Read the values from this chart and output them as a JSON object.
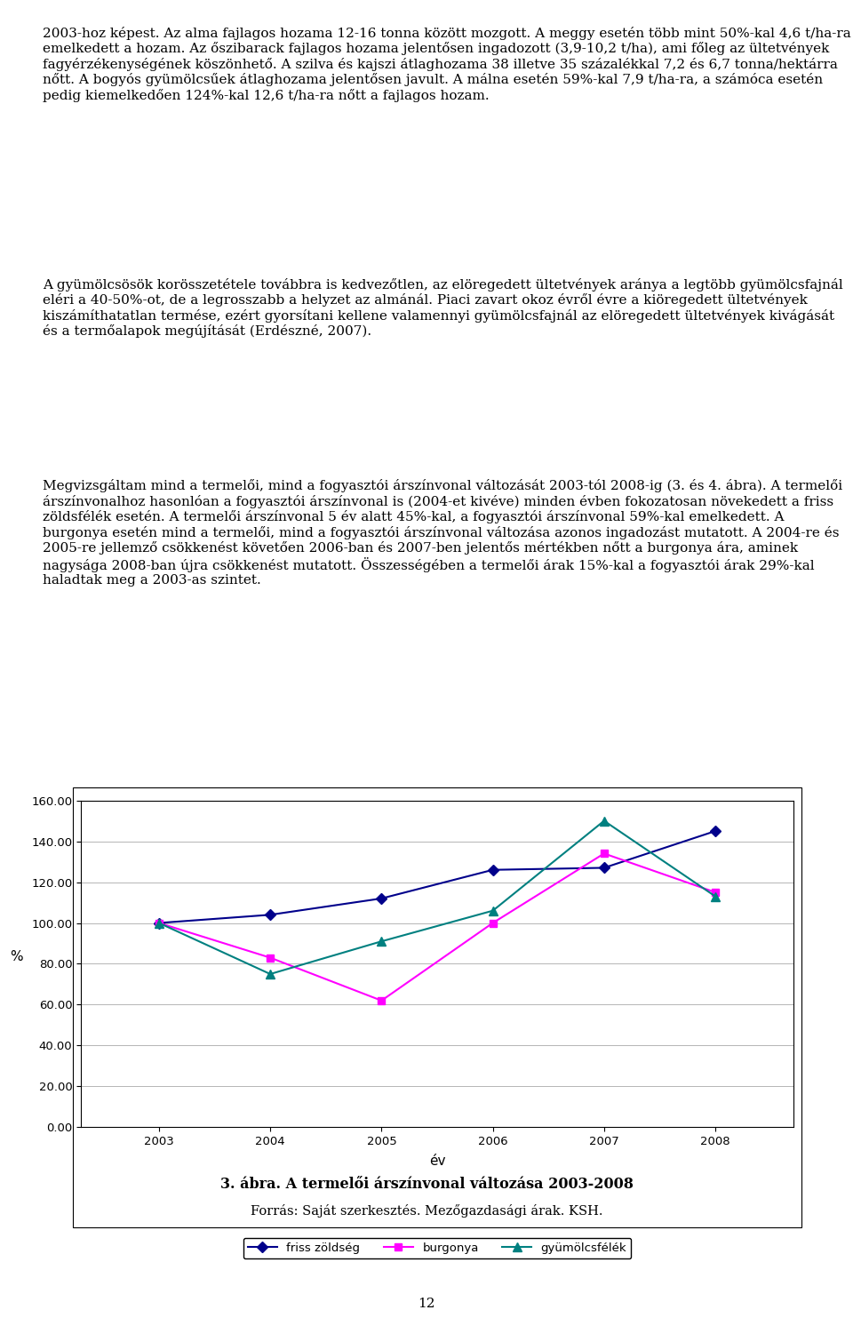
{
  "years": [
    2003,
    2004,
    2005,
    2006,
    2007,
    2008
  ],
  "friss_zoldseg": [
    100.0,
    104.0,
    112.0,
    126.0,
    127.0,
    145.0
  ],
  "burgonya": [
    100.0,
    83.0,
    62.0,
    100.0,
    134.0,
    115.0
  ],
  "gyumolcsfele": [
    100.0,
    75.0,
    91.0,
    106.0,
    150.0,
    113.0
  ],
  "friss_zoldseg_color": "#00008B",
  "burgonya_color": "#FF00FF",
  "gyumolcsfele_color": "#008080",
  "ylabel": "%",
  "xlabel": "év",
  "ylim_min": 0.0,
  "ylim_max": 160.0,
  "yticks": [
    0.0,
    20.0,
    40.0,
    60.0,
    80.0,
    100.0,
    120.0,
    140.0,
    160.0
  ],
  "legend_labels": [
    "friss zöldség",
    "burgonya",
    "gyümölcsfélék"
  ],
  "caption_bold": "3. ábra. A termelői árszínvonal változása 2003-2008",
  "caption_normal": "Forrás: Saját szerkesztés. Mezőgazdasági árak. KSH.",
  "page_number": "12",
  "para1": "2003-hoz képest. Az alma fajlagos hozama 12-16 tonna között mozgott. A meggy esetén több mint 50%-kal 4,6 t/ha-ra emelkedett a hozam. Az őszibarack fajlagos hozama jelentősen ingadozott (3,9-10,2 t/ha), ami főleg az ültetvények fagyérzékenységének köszönhető. A szilva és kajszi átlaghozama 38 illetve 35 százalékkal 7,2 és 6,7 tonna/hektárra nőtt. A bogyós gyümölcsűek átlaghozama jelentősen javult. A málna esetén 59%-kal 7,9 t/ha-ra, a számóca esetén pedig kiemelkedően 124%-kal 12,6 t/ha-ra nőtt a fajlagos hozam.",
  "para2": "A gyümölcsösök korösszetétele továbbra is kedvezőtlen, az elöregedett ültetvények aránya a legtöbb gyümölcsfajnál eléri a 40-50%-ot, de a legrosszabb a helyzet az almánál. Piaci zavart okoz évről évre a kiöregedett ültetvények kiszámíthatatlan termése, ezért gyorsítani kellene valamennyi gyümölcsfajnál az elöregedett ültetvények kivágását és a termőalapok megújítását (Erdészné, 2007).",
  "para3": "Megvizsgáltam mind a termelői, mind a fogyasztói árszínvonal változását 2003-tól 2008-ig (3. és 4. ábra). A termelői árszínvonalhoz hasonlóan a fogyasztói árszínvonal is (2004-et kivéve) minden évben fokozatosan növekedett a friss zöldsfélék esetén. A termelői árszínvonal 5 év alatt 45%-kal, a fogyasztói árszínvonal 59%-kal emelkedett. A burgonya esetén mind a termelői, mind a fogyasztói árszínvonal változása azonos ingadozást mutatott. A 2004-re és 2005-re jellemző csökkenést követően 2006-ban és 2007-ben jelentős mértékben nőtt a burgonya ára, aminek nagysága 2008-ban újra csökkenést mutatott. Összességében a termelői árak 15%-kal a fogyasztói árak 29%-kal haladtak meg a 2003-as szintet."
}
